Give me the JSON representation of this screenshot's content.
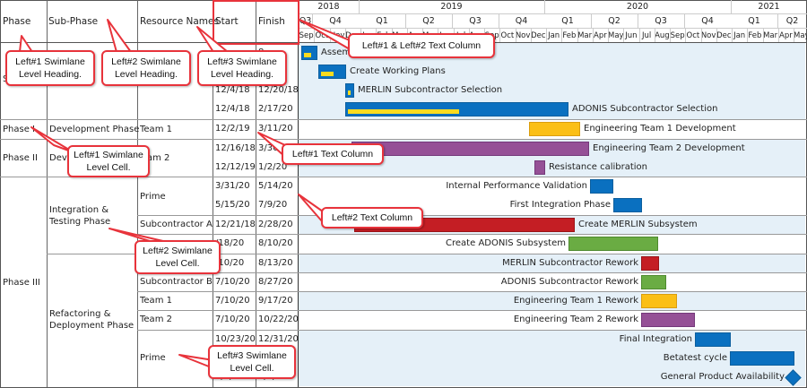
{
  "headers": {
    "phase": "Phase",
    "sub_phase": "Sub-Phase",
    "resource_names": "Resource Names",
    "start": "Start",
    "finish": "Finish"
  },
  "timeline": {
    "years": [
      "2018",
      "2019",
      "2020",
      "2021"
    ],
    "quarters": [
      "Q3",
      "Q4",
      "Q1",
      "Q2",
      "Q3",
      "Q4",
      "Q1",
      "Q2",
      "Q3",
      "Q4",
      "Q1",
      "Q2"
    ],
    "months": [
      "Sep",
      "Oct",
      "Nov",
      "Dec",
      "Jan",
      "Feb",
      "Mar",
      "Apr",
      "May",
      "Jun",
      "Jul",
      "Aug",
      "Sep",
      "Oct",
      "Nov",
      "Dec",
      "Jan",
      "Feb",
      "Mar",
      "Apr",
      "May",
      "Jun",
      "Jul",
      "Aug",
      "Sep",
      "Oct",
      "Nov",
      "Dec",
      "Jan",
      "Feb",
      "Mar",
      "Apr",
      "May"
    ]
  },
  "groups": [
    {
      "phase": "S",
      "sub_phase": "a",
      "resource": ""
    },
    {
      "phase": "Phase I",
      "sub_phase": "Development Phase",
      "resource": "Team 1"
    },
    {
      "phase": "Phase II",
      "sub_phase": "Dev",
      "resource": "am 2"
    },
    {
      "phase": "Phase III",
      "sub_phase_1": "Integration & Testing Phase",
      "sub_phase_2": "Refactoring & Deployment Phase"
    }
  ],
  "rows": [
    {
      "resource": "",
      "start": "",
      "finish": "8",
      "task": "Assem",
      "color": "blue"
    },
    {
      "resource": "",
      "start": "",
      "finish": "8",
      "task": "Create Working Plans",
      "color": "blue"
    },
    {
      "resource": "",
      "start": "12/4/18",
      "finish": "12/20/18",
      "task": "MERLIN Subcontractor Selection",
      "color": "blue"
    },
    {
      "resource": "",
      "start": "12/4/18",
      "finish": "2/17/20",
      "task": "ADONIS Subcontractor Selection",
      "color": "blue"
    },
    {
      "resource": "Team 1",
      "start": "12/2/19",
      "finish": "3/11/20",
      "task": "Engineering Team 1 Development",
      "color": "gold"
    },
    {
      "resource": "am 2",
      "start": "12/16/18",
      "finish": "3/30/",
      "task": "Engineering Team 2 Development",
      "color": "purple"
    },
    {
      "resource": "",
      "start": "12/12/19",
      "finish": "1/2/20",
      "task": "Resistance calibration",
      "color": "purple"
    },
    {
      "resource": "Prime",
      "start": "3/31/20",
      "finish": "5/14/20",
      "task": "Internal Performance Validation",
      "color": "blue"
    },
    {
      "resource": "",
      "start": "5/15/20",
      "finish": "7/9/20",
      "task": "First Integration Phase",
      "color": "blue"
    },
    {
      "resource": "Subcontractor A",
      "start": "12/21/18",
      "finish": "2/28/20",
      "task": "Create MERLIN Subsystem",
      "color": "red"
    },
    {
      "resource": "",
      "start": "/18/20",
      "finish": "8/10/20",
      "task": "Create ADONIS Subsystem",
      "color": "green"
    },
    {
      "resource": "",
      "start": "/10/20",
      "finish": "8/13/20",
      "task": "MERLIN Subcontractor Rework",
      "color": "red"
    },
    {
      "resource": "Subcontractor B",
      "start": "7/10/20",
      "finish": "8/27/20",
      "task": "ADONIS Subcontractor Rework",
      "color": "green"
    },
    {
      "resource": "Team 1",
      "start": "7/10/20",
      "finish": "9/17/20",
      "task": "Engineering Team 1 Rework",
      "color": "gold"
    },
    {
      "resource": "Team 2",
      "start": "7/10/20",
      "finish": "10/22/20",
      "task": "Engineering Team 2 Rework",
      "color": "purple"
    },
    {
      "resource": "Prime",
      "start": "10/23/20",
      "finish": "12/31/20",
      "task": "Final Integration",
      "color": "blue"
    },
    {
      "resource": "",
      "start": "",
      "finish": "",
      "task": "Betatest cycle",
      "color": "blue"
    },
    {
      "resource": "",
      "start": "3/6/21",
      "finish": "3/6/21",
      "task": "General Product Availability",
      "color": "blue",
      "milestone": true
    }
  ],
  "callouts": {
    "c1": "Left#1 Swimlane Level Heading.",
    "c2": "Left#2 Swimlane Level Heading.",
    "c3": "Left#3 Swimlane Level Heading.",
    "c4": "Left#1 & Left#2 Text Column",
    "c5": "Left#1 Swimlane Level Cell.",
    "c6": "Left#1 Text Column",
    "c7": "Left#2 Text Column",
    "c8": "Left#2 Swimlane Level Cell.",
    "c9": "Left#3 Swimlane Level Cell."
  },
  "colors": {
    "blue": "#0a70c0",
    "gold": "#fbbf16",
    "purple": "#955096",
    "red": "#c41e24",
    "green": "#6aac43",
    "progress": "#fadb1e",
    "band": "#e5f0f8",
    "callout_border": "#e8333b"
  }
}
